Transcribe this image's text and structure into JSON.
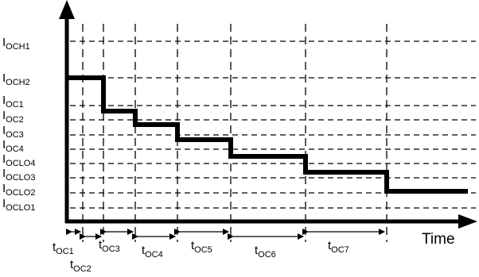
{
  "diagram": {
    "x_axis_label": "Time",
    "current_levels": [
      {
        "id": "ioch1",
        "base": "I",
        "subscript": "OCH1"
      },
      {
        "id": "ioch2",
        "base": "I",
        "subscript": "OCH2"
      },
      {
        "id": "ioc1",
        "base": "I",
        "subscript": "OC1"
      },
      {
        "id": "ioc2",
        "base": "I",
        "subscript": "OC2"
      },
      {
        "id": "ioc3",
        "base": "I",
        "subscript": "OC3"
      },
      {
        "id": "ioc4",
        "base": "I",
        "subscript": "OC4"
      },
      {
        "id": "ioclo4",
        "base": "I",
        "subscript": "OCLO4"
      },
      {
        "id": "ioclo3",
        "base": "I",
        "subscript": "OCLO3"
      },
      {
        "id": "ioclo2",
        "base": "I",
        "subscript": "OCLO2"
      },
      {
        "id": "ioclo1",
        "base": "I",
        "subscript": "OCLO1"
      }
    ],
    "time_intervals": [
      {
        "id": "toc1",
        "base": "t",
        "subscript": "OC1"
      },
      {
        "id": "toc2",
        "base": "t",
        "subscript": "OC2"
      },
      {
        "id": "toc3",
        "base": "t",
        "subscript": "OC3"
      },
      {
        "id": "toc4",
        "base": "t",
        "subscript": "OC4"
      },
      {
        "id": "toc5",
        "base": "t",
        "subscript": "OC5"
      },
      {
        "id": "toc6",
        "base": "t",
        "subscript": "OC6"
      },
      {
        "id": "toc7",
        "base": "t",
        "subscript": "OC7"
      }
    ],
    "colors": {
      "line": "#000000",
      "background": "#ffffff"
    }
  }
}
